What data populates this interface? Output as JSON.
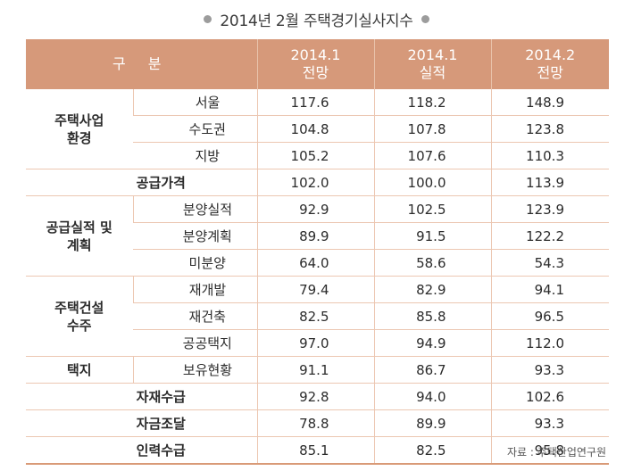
{
  "title": "2014년 2월 주택경기실사지수",
  "header": {
    "category": "구 분",
    "col1": [
      "2014.1",
      "전망"
    ],
    "col2": [
      "2014.1",
      "실적"
    ],
    "col3": [
      "2014.2",
      "전망"
    ]
  },
  "groups": [
    {
      "label": [
        "주택사업",
        "환경"
      ],
      "rows": [
        {
          "name": "서울",
          "values": [
            "117.6",
            "118.2",
            "148.9"
          ]
        },
        {
          "name": "수도권",
          "values": [
            "104.8",
            "107.8",
            "123.8"
          ]
        },
        {
          "name": "지방",
          "values": [
            "105.2",
            "107.6",
            "110.3"
          ]
        }
      ]
    },
    {
      "label": [
        "공급가격"
      ],
      "rows": [
        {
          "name": "",
          "values": [
            "102.0",
            "100.0",
            "113.9"
          ]
        }
      ]
    },
    {
      "label": [
        "공급실적 및",
        "계획"
      ],
      "rows": [
        {
          "name": "분양실적",
          "values": [
            "92.9",
            "102.5",
            "123.9"
          ]
        },
        {
          "name": "분양계획",
          "values": [
            "89.9",
            "91.5",
            "122.2"
          ]
        },
        {
          "name": "미분양",
          "values": [
            "64.0",
            "58.6",
            "54.3"
          ]
        }
      ]
    },
    {
      "label": [
        "주택건설",
        "수주"
      ],
      "rows": [
        {
          "name": "재개발",
          "values": [
            "79.4",
            "82.9",
            "94.1"
          ]
        },
        {
          "name": "재건축",
          "values": [
            "82.5",
            "85.8",
            "96.5"
          ]
        },
        {
          "name": "공공택지",
          "values": [
            "97.0",
            "94.9",
            "112.0"
          ]
        }
      ]
    },
    {
      "label": [
        "택지"
      ],
      "rows": [
        {
          "name": "보유현황",
          "values": [
            "91.1",
            "86.7",
            "93.3"
          ]
        }
      ]
    },
    {
      "label": [
        "자재수급"
      ],
      "rows": [
        {
          "name": "",
          "values": [
            "92.8",
            "94.0",
            "102.6"
          ]
        }
      ]
    },
    {
      "label": [
        "자금조달"
      ],
      "rows": [
        {
          "name": "",
          "values": [
            "78.8",
            "89.9",
            "93.3"
          ]
        }
      ]
    },
    {
      "label": [
        "인력수급"
      ],
      "rows": [
        {
          "name": "",
          "values": [
            "85.1",
            "82.5",
            "95.8"
          ]
        }
      ]
    }
  ],
  "source": "자료 : 주택산업연구원"
}
